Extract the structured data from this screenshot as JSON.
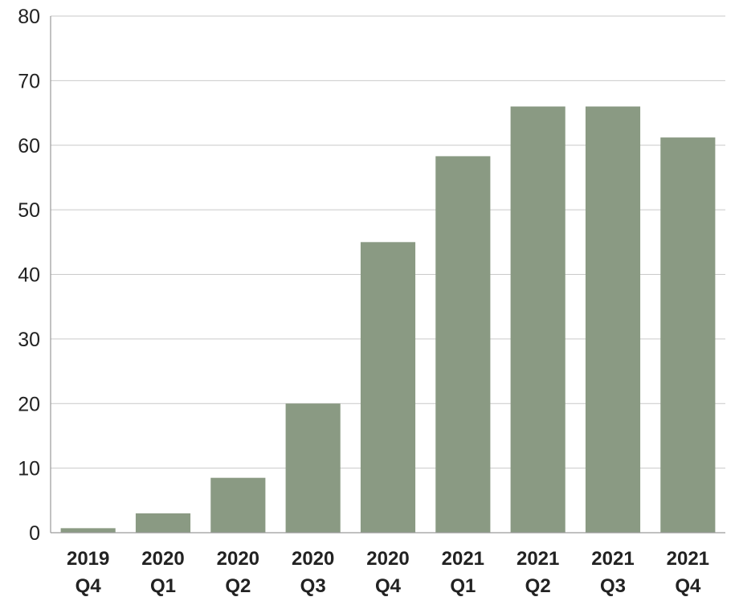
{
  "chart_data": {
    "type": "bar",
    "title": "",
    "xlabel": "",
    "ylabel": "",
    "categories": [
      [
        "2019",
        "Q4"
      ],
      [
        "2020",
        "Q1"
      ],
      [
        "2020",
        "Q2"
      ],
      [
        "2020",
        "Q3"
      ],
      [
        "2020",
        "Q4"
      ],
      [
        "2021",
        "Q1"
      ],
      [
        "2021",
        "Q2"
      ],
      [
        "2021",
        "Q3"
      ],
      [
        "2021",
        "Q4"
      ]
    ],
    "values": [
      0.7,
      3.0,
      8.5,
      20.0,
      45.0,
      58.3,
      66.0,
      66.0,
      61.2
    ],
    "ylim": [
      0,
      80
    ],
    "yticks": [
      0,
      10,
      20,
      30,
      40,
      50,
      60,
      70,
      80
    ],
    "grid": true,
    "legend": "none",
    "colors": {
      "bar": "#8a9a83",
      "grid": "#c9c9c9",
      "axis": "#9a9a9a",
      "text": "#222222"
    }
  }
}
